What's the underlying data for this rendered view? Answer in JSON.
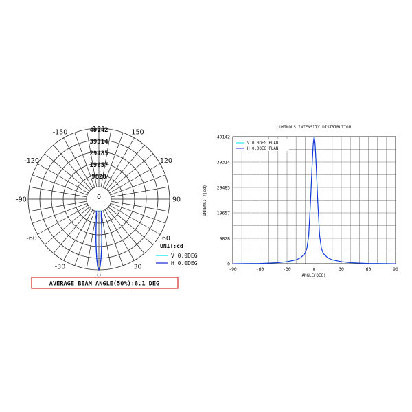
{
  "chart_data": [
    {
      "type": "polar",
      "unit_label": "UNIT:cd",
      "angle_labels": [
        "0",
        "30",
        "60",
        "90",
        "120",
        "150",
        "180",
        "-150",
        "-120",
        "-90",
        "-60",
        "-30"
      ],
      "angles": [
        0,
        30,
        60,
        90,
        120,
        150,
        180,
        -150,
        -120,
        -90,
        -60,
        -30
      ],
      "ring_values": [
        9828,
        19657,
        29485,
        39314,
        49142
      ],
      "center_label": "0",
      "beam_angle_text": "AVERAGE BEAM ANGLE(50%):8.1 DEG",
      "series": [
        {
          "name": "V 0.0DEG",
          "color": "#00e5ee",
          "points": [
            [
              -14,
              0
            ],
            [
              -10,
              1200
            ],
            [
              -8,
              4000
            ],
            [
              -6,
              12000
            ],
            [
              -4.05,
              24571
            ],
            [
              -3,
              32000
            ],
            [
              -2,
              40000
            ],
            [
              -1,
              46500
            ],
            [
              0,
              49142
            ],
            [
              1,
              46500
            ],
            [
              2,
              40000
            ],
            [
              3,
              32000
            ],
            [
              4.05,
              24571
            ],
            [
              6,
              12000
            ],
            [
              8,
              4000
            ],
            [
              10,
              1200
            ],
            [
              14,
              0
            ]
          ]
        },
        {
          "name": "H 0.0DEG",
          "color": "#1f2fd6",
          "points": [
            [
              -14,
              0
            ],
            [
              -10,
              1200
            ],
            [
              -8,
              4000
            ],
            [
              -6,
              12000
            ],
            [
              -4.05,
              24571
            ],
            [
              -3,
              32000
            ],
            [
              -2,
              40000
            ],
            [
              -1,
              46500
            ],
            [
              0,
              49142
            ],
            [
              1,
              46500
            ],
            [
              2,
              40000
            ],
            [
              3,
              32000
            ],
            [
              4.05,
              24571
            ],
            [
              6,
              12000
            ],
            [
              8,
              4000
            ],
            [
              10,
              1200
            ],
            [
              14,
              0
            ]
          ]
        }
      ]
    },
    {
      "type": "line",
      "title": "LUMINOUS INTENSITY DISTRIBUTION",
      "xlabel": "ANGLE(DEG)",
      "ylabel": "INTENSITY(cd)",
      "xlim": [
        -90,
        90
      ],
      "ylim": [
        0,
        49142
      ],
      "xticks": [
        -90,
        -60,
        -30,
        0,
        30,
        60,
        90
      ],
      "yticks": [
        0,
        9828,
        19657,
        29485,
        39314,
        49142
      ],
      "grid": true,
      "legend_position": "top-left",
      "series": [
        {
          "name": "V 0.0DEG PLAN",
          "color": "#00e5ee",
          "x": [
            -90,
            -60,
            -40,
            -30,
            -20,
            -15,
            -10,
            -8,
            -6,
            -4,
            -2,
            -1,
            0,
            1,
            2,
            4,
            6,
            8,
            10,
            15,
            20,
            30,
            40,
            60,
            90
          ],
          "y": [
            0,
            100,
            400,
            800,
            1500,
            2300,
            4000,
            6000,
            11000,
            24000,
            40000,
            46500,
            49142,
            46500,
            40000,
            24000,
            11000,
            6000,
            4000,
            2300,
            1500,
            800,
            400,
            100,
            0
          ]
        },
        {
          "name": "H 0.0DEG PLAN",
          "color": "#1f2fd6",
          "x": [
            -90,
            -60,
            -40,
            -30,
            -20,
            -15,
            -10,
            -8,
            -6,
            -4,
            -2,
            -1,
            0,
            1,
            2,
            4,
            6,
            8,
            10,
            15,
            20,
            30,
            40,
            60,
            90
          ],
          "y": [
            0,
            100,
            400,
            800,
            1500,
            2300,
            4000,
            6000,
            11000,
            24000,
            40000,
            46500,
            49142,
            46500,
            40000,
            24000,
            11000,
            6000,
            4000,
            2300,
            1500,
            800,
            400,
            100,
            0
          ]
        }
      ]
    }
  ]
}
